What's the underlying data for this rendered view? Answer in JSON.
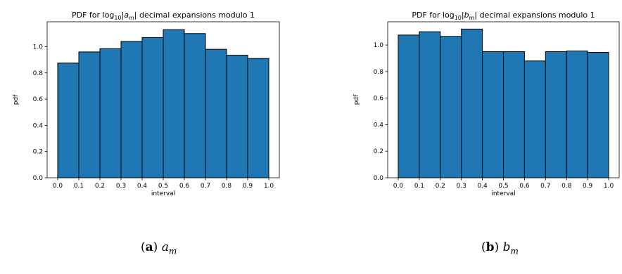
{
  "chart_data": [
    {
      "type": "bar",
      "title_prefix": "PDF for log",
      "title_sub": "10",
      "title_var": "a",
      "title_var_sub": "m",
      "title_suffix": "| decimal expansions modulo 1",
      "xlabel": "interval",
      "ylabel": "pdf",
      "bin_edges": [
        0.0,
        0.1,
        0.2,
        0.3,
        0.4,
        0.5,
        0.6,
        0.7,
        0.8,
        0.9,
        1.0
      ],
      "values": [
        0.875,
        0.96,
        0.985,
        1.04,
        1.07,
        1.13,
        1.1,
        0.98,
        0.935,
        0.91
      ],
      "xticks": [
        "0.0",
        "0.1",
        "0.2",
        "0.3",
        "0.4",
        "0.5",
        "0.6",
        "0.7",
        "0.8",
        "0.9",
        "1.0"
      ],
      "yticks": [
        "0.0",
        "0.2",
        "0.4",
        "0.6",
        "0.8",
        "1.0"
      ],
      "ylim": [
        0,
        1.19
      ],
      "xlim": [
        -0.05,
        1.05
      ],
      "bar_color": "#1f77b4",
      "edge_color": "#000000",
      "grid": false,
      "caption_label": "a",
      "caption_var": "a",
      "caption_sub": "m"
    },
    {
      "type": "bar",
      "title_prefix": "PDF for log",
      "title_sub": "10",
      "title_var": "b",
      "title_var_sub": "m",
      "title_suffix": "| decimal expansions modulo 1",
      "xlabel": "interval",
      "ylabel": "pdf",
      "bin_edges": [
        0.0,
        0.1,
        0.2,
        0.3,
        0.4,
        0.5,
        0.6,
        0.7,
        0.8,
        0.9,
        1.0
      ],
      "values": [
        1.075,
        1.1,
        1.065,
        1.12,
        0.95,
        0.95,
        0.88,
        0.95,
        0.955,
        0.945
      ],
      "xticks": [
        "0.0",
        "0.1",
        "0.2",
        "0.3",
        "0.4",
        "0.5",
        "0.6",
        "0.7",
        "0.8",
        "0.9",
        "1.0"
      ],
      "yticks": [
        "0.0",
        "0.2",
        "0.4",
        "0.6",
        "0.8",
        "1.0"
      ],
      "ylim": [
        0,
        1.175
      ],
      "xlim": [
        -0.05,
        1.05
      ],
      "bar_color": "#1f77b4",
      "edge_color": "#000000",
      "grid": false,
      "caption_label": "b",
      "caption_var": "b",
      "caption_sub": "m"
    }
  ]
}
